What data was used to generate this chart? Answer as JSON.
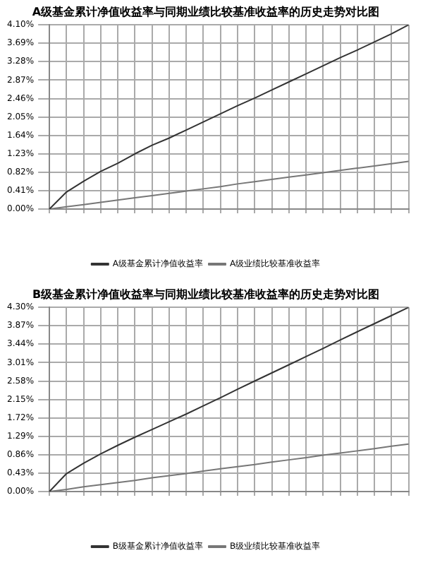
{
  "chart_data": [
    {
      "type": "line",
      "title": "A级基金累计净值收益率与同期业绩比较基准收益率的历史走势对比图",
      "categories": [
        null,
        null,
        null,
        null,
        null,
        null,
        null,
        null,
        null,
        null,
        null,
        null,
        null,
        null,
        null,
        null,
        null,
        null,
        null,
        null,
        null,
        null
      ],
      "series": [
        {
          "name": "A级基金累计净值收益率",
          "color": "#333333",
          "values": [
            0,
            0.38,
            0.62,
            0.84,
            1.02,
            1.23,
            1.42,
            1.58,
            1.76,
            1.94,
            2.12,
            2.3,
            2.47,
            2.65,
            2.83,
            3.01,
            3.19,
            3.37,
            3.54,
            3.72,
            3.9,
            4.1
          ]
        },
        {
          "name": "A级业绩比较基准收益率",
          "color": "#777777",
          "values": [
            0,
            0.05,
            0.1,
            0.15,
            0.2,
            0.25,
            0.3,
            0.35,
            0.4,
            0.45,
            0.5,
            0.56,
            0.61,
            0.66,
            0.71,
            0.76,
            0.81,
            0.86,
            0.91,
            0.96,
            1.01,
            1.06
          ]
        }
      ],
      "ylim": [
        0,
        4.1
      ],
      "yticks": [
        {
          "value": 0,
          "label": "0.00%"
        },
        {
          "value": 0.41,
          "label": "0.41%"
        },
        {
          "value": 0.82,
          "label": "0.82%"
        },
        {
          "value": 1.23,
          "label": "1.23%"
        },
        {
          "value": 1.64,
          "label": "1.64%"
        },
        {
          "value": 2.05,
          "label": "2.05%"
        },
        {
          "value": 2.46,
          "label": "2.46%"
        },
        {
          "value": 2.87,
          "label": "2.87%"
        },
        {
          "value": 3.28,
          "label": "3.28%"
        },
        {
          "value": 3.69,
          "label": "3.69%"
        },
        {
          "value": 4.1,
          "label": "4.10%"
        }
      ],
      "grid": true,
      "legend": "bottom",
      "marker": "none",
      "line_style": "solid"
    },
    {
      "type": "line",
      "title": "B级基金累计净值收益率与同期业绩比较基准收益率的历史走势对比图",
      "categories": [
        null,
        null,
        null,
        null,
        null,
        null,
        null,
        null,
        null,
        null,
        null,
        null,
        null,
        null,
        null,
        null,
        null,
        null,
        null,
        null,
        null,
        null
      ],
      "series": [
        {
          "name": "B级基金累计净值收益率",
          "color": "#333333",
          "values": [
            0,
            0.42,
            0.66,
            0.88,
            1.08,
            1.27,
            1.45,
            1.63,
            1.81,
            2.0,
            2.19,
            2.39,
            2.58,
            2.77,
            2.96,
            3.15,
            3.34,
            3.54,
            3.73,
            3.92,
            4.11,
            4.3
          ]
        },
        {
          "name": "B级业绩比较基准收益率",
          "color": "#777777",
          "values": [
            0,
            0.05,
            0.11,
            0.16,
            0.21,
            0.26,
            0.32,
            0.37,
            0.42,
            0.48,
            0.53,
            0.58,
            0.63,
            0.69,
            0.74,
            0.79,
            0.85,
            0.9,
            0.95,
            1.0,
            1.06,
            1.11
          ]
        }
      ],
      "ylim": [
        0,
        4.3
      ],
      "yticks": [
        {
          "value": 0,
          "label": "0.00%"
        },
        {
          "value": 0.43,
          "label": "0.43%"
        },
        {
          "value": 0.86,
          "label": "0.86%"
        },
        {
          "value": 1.29,
          "label": "1.29%"
        },
        {
          "value": 1.72,
          "label": "1.72%"
        },
        {
          "value": 2.15,
          "label": "2.15%"
        },
        {
          "value": 2.58,
          "label": "2.58%"
        },
        {
          "value": 3.01,
          "label": "3.01%"
        },
        {
          "value": 3.44,
          "label": "3.44%"
        },
        {
          "value": 3.87,
          "label": "3.87%"
        },
        {
          "value": 4.3,
          "label": "4.30%"
        }
      ],
      "grid": true,
      "legend": "bottom",
      "marker": "none",
      "line_style": "solid"
    }
  ]
}
